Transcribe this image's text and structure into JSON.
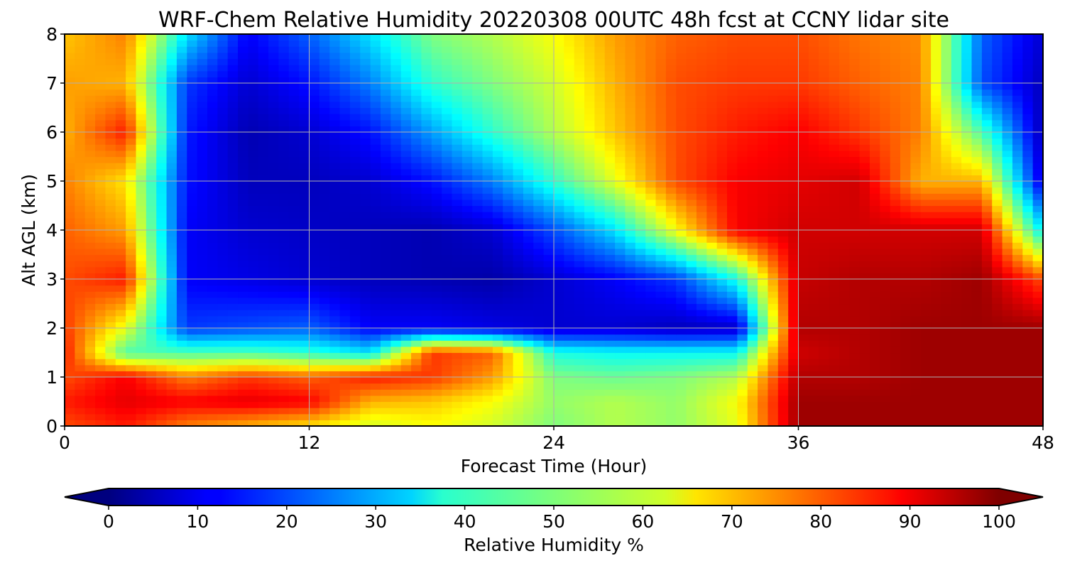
{
  "chart_data": {
    "type": "heatmap",
    "title": "WRF-Chem Relative Humidity 20220308 00UTC 48h fcst at CCNY lidar site",
    "xlabel": "Forecast Time (Hour)",
    "ylabel": "Alt AGL (km)",
    "xlim": [
      0,
      48
    ],
    "ylim": [
      0,
      8
    ],
    "x_ticks": [
      0,
      12,
      24,
      36,
      48
    ],
    "y_ticks": [
      0,
      1,
      2,
      3,
      4,
      5,
      6,
      7,
      8
    ],
    "grid": true,
    "x": [
      0,
      3,
      6,
      9,
      12,
      15,
      18,
      21,
      24,
      27,
      30,
      33,
      36,
      39,
      42,
      45,
      48
    ],
    "y": [
      0,
      0.5,
      1,
      1.5,
      2,
      3,
      4,
      5,
      6,
      7,
      8
    ],
    "z": [
      [
        80,
        85,
        75,
        70,
        65,
        58,
        62,
        58,
        50,
        55,
        52,
        60,
        97,
        97,
        97,
        97,
        97
      ],
      [
        85,
        90,
        88,
        90,
        88,
        70,
        68,
        62,
        52,
        55,
        52,
        62,
        97,
        97,
        97,
        97,
        97
      ],
      [
        80,
        88,
        75,
        82,
        78,
        85,
        82,
        72,
        50,
        48,
        50,
        55,
        95,
        95,
        97,
        97,
        97
      ],
      [
        85,
        45,
        45,
        45,
        42,
        35,
        82,
        78,
        40,
        38,
        38,
        38,
        92,
        95,
        97,
        97,
        97
      ],
      [
        82,
        60,
        18,
        20,
        22,
        12,
        12,
        10,
        8,
        8,
        6,
        7,
        95,
        95,
        97,
        97,
        97
      ],
      [
        80,
        85,
        12,
        10,
        8,
        6,
        5,
        4,
        8,
        12,
        18,
        40,
        93,
        95,
        95,
        97,
        80
      ],
      [
        78,
        72,
        12,
        8,
        7,
        6,
        5,
        8,
        20,
        35,
        62,
        88,
        92,
        92,
        92,
        92,
        35
      ],
      [
        75,
        65,
        14,
        6,
        6,
        8,
        14,
        25,
        42,
        60,
        80,
        88,
        90,
        92,
        70,
        70,
        8
      ],
      [
        70,
        85,
        15,
        5,
        8,
        14,
        28,
        42,
        55,
        68,
        80,
        85,
        88,
        82,
        75,
        45,
        5
      ],
      [
        72,
        70,
        18,
        8,
        14,
        25,
        42,
        50,
        58,
        70,
        80,
        82,
        82,
        78,
        75,
        20,
        6
      ],
      [
        68,
        75,
        35,
        12,
        22,
        35,
        50,
        55,
        62,
        72,
        78,
        80,
        80,
        76,
        74,
        22,
        8
      ]
    ],
    "colorbar": {
      "label": "Relative Humidity %",
      "min": 0,
      "max": 100,
      "ticks": [
        0,
        10,
        20,
        30,
        40,
        50,
        60,
        70,
        80,
        90,
        100
      ],
      "extend": "both",
      "colormap": "jet"
    }
  }
}
